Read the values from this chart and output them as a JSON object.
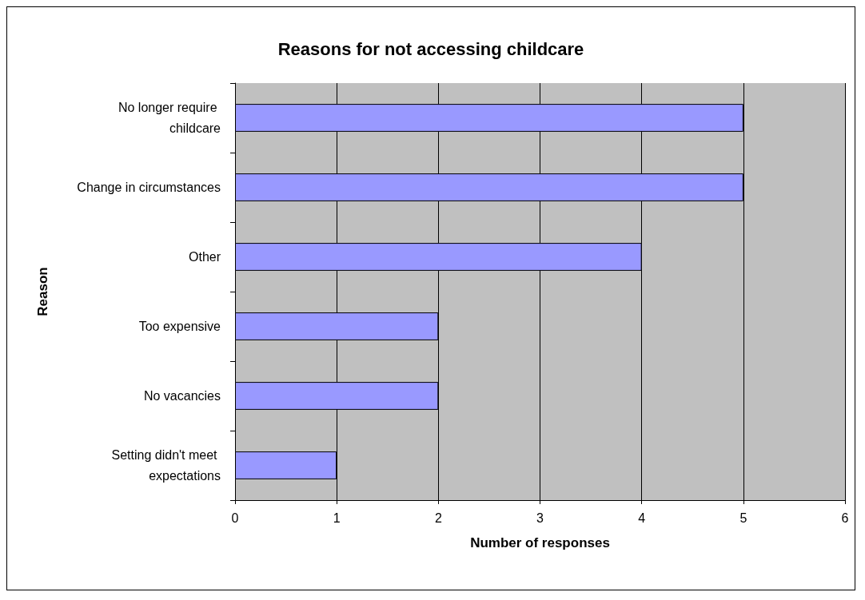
{
  "chart_data": {
    "type": "bar",
    "orientation": "horizontal",
    "title": "Reasons for not accessing childcare",
    "xlabel": "Number of responses",
    "ylabel": "Reason",
    "categories": [
      "No longer require childcare",
      "Change in circumstances",
      "Other",
      "Too expensive",
      "No vacancies",
      "Setting didn't meet expectations"
    ],
    "values": [
      5,
      5,
      4,
      2,
      2,
      1
    ],
    "color": "#9999ff",
    "xlim": [
      0,
      6
    ],
    "xticks": [
      0,
      1,
      2,
      3,
      4,
      5,
      6
    ],
    "grid": "x"
  }
}
